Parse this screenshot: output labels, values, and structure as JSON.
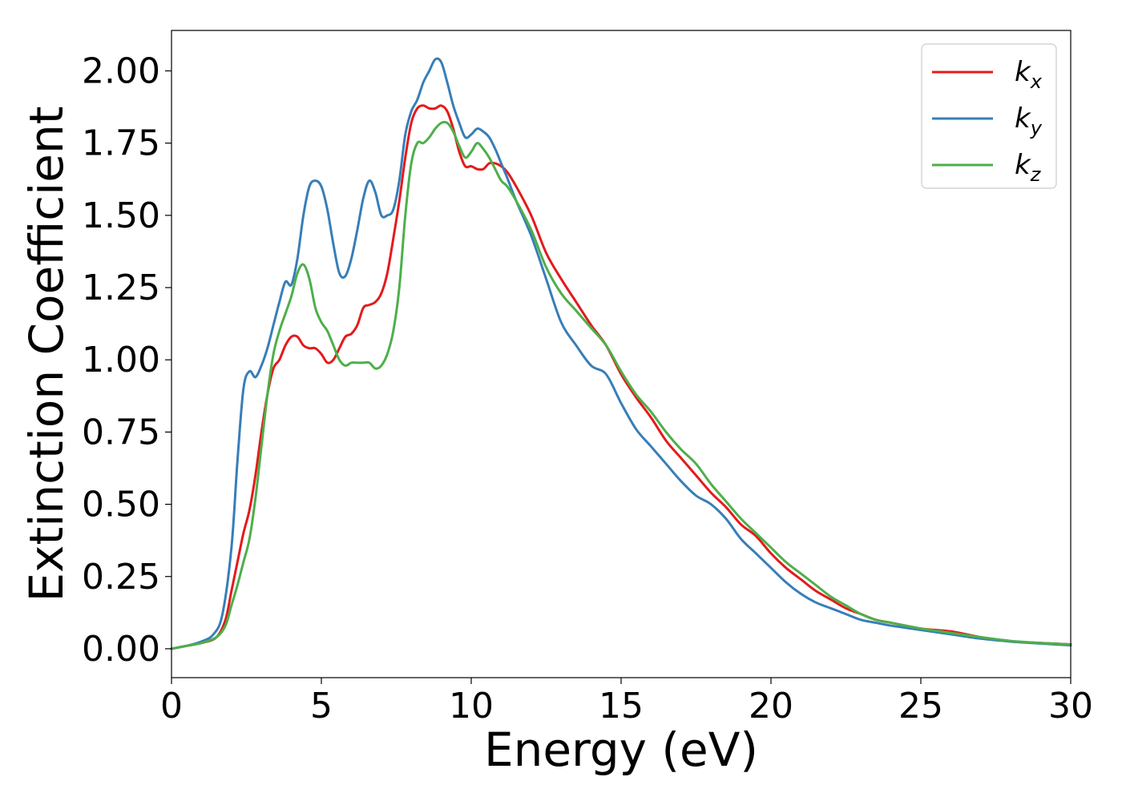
{
  "chart_data": {
    "type": "line",
    "xlabel": "Energy (eV)",
    "ylabel": "Extinction Coefficient",
    "xlim": [
      0,
      30
    ],
    "ylim": [
      -0.1,
      2.14
    ],
    "xticks": [
      0,
      5,
      10,
      15,
      20,
      25,
      30
    ],
    "xtick_labels": [
      "0",
      "5",
      "10",
      "15",
      "20",
      "25",
      "30"
    ],
    "yticks": [
      0.0,
      0.25,
      0.5,
      0.75,
      1.0,
      1.25,
      1.5,
      1.75,
      2.0
    ],
    "ytick_labels": [
      "0.00",
      "0.25",
      "0.50",
      "0.75",
      "1.00",
      "1.25",
      "1.50",
      "1.75",
      "2.00"
    ],
    "grid": false,
    "legend": "top-right",
    "series": [
      {
        "name": "k",
        "subscript": "x",
        "color": "#e41a1c",
        "x": [
          0,
          0.5,
          1.0,
          1.5,
          1.8,
          2.0,
          2.2,
          2.4,
          2.6,
          2.8,
          3.0,
          3.2,
          3.4,
          3.6,
          3.8,
          4.0,
          4.2,
          4.4,
          4.6,
          4.8,
          5.0,
          5.2,
          5.4,
          5.6,
          5.8,
          6.0,
          6.2,
          6.4,
          6.6,
          6.8,
          7.0,
          7.2,
          7.4,
          7.6,
          7.8,
          8.0,
          8.2,
          8.4,
          8.6,
          8.8,
          9.0,
          9.2,
          9.4,
          9.6,
          9.8,
          10.0,
          10.2,
          10.4,
          10.6,
          10.8,
          11.0,
          11.2,
          11.5,
          12.0,
          12.5,
          13.0,
          13.5,
          14.0,
          14.5,
          15.0,
          15.5,
          16.0,
          16.5,
          17.0,
          17.5,
          18.0,
          18.5,
          19.0,
          19.5,
          20.0,
          20.5,
          21.0,
          21.5,
          22.0,
          22.5,
          23.0,
          23.5,
          24.0,
          25.0,
          26.0,
          27.0,
          28.0,
          29.0,
          30.0
        ],
        "y": [
          0.0,
          0.01,
          0.02,
          0.04,
          0.1,
          0.2,
          0.3,
          0.4,
          0.48,
          0.6,
          0.75,
          0.88,
          0.97,
          1.0,
          1.05,
          1.08,
          1.08,
          1.05,
          1.04,
          1.04,
          1.02,
          0.99,
          1.0,
          1.04,
          1.08,
          1.09,
          1.12,
          1.18,
          1.19,
          1.2,
          1.23,
          1.3,
          1.42,
          1.55,
          1.7,
          1.82,
          1.87,
          1.88,
          1.87,
          1.87,
          1.88,
          1.86,
          1.8,
          1.72,
          1.67,
          1.67,
          1.66,
          1.66,
          1.68,
          1.68,
          1.67,
          1.65,
          1.6,
          1.5,
          1.37,
          1.28,
          1.2,
          1.12,
          1.05,
          0.95,
          0.87,
          0.8,
          0.72,
          0.66,
          0.6,
          0.54,
          0.49,
          0.43,
          0.39,
          0.33,
          0.28,
          0.24,
          0.2,
          0.17,
          0.14,
          0.12,
          0.1,
          0.09,
          0.07,
          0.06,
          0.04,
          0.025,
          0.02,
          0.015
        ]
      },
      {
        "name": "k",
        "subscript": "y",
        "color": "#377eb8",
        "x": [
          0,
          0.5,
          1.0,
          1.4,
          1.7,
          2.0,
          2.2,
          2.4,
          2.6,
          2.8,
          3.0,
          3.2,
          3.4,
          3.6,
          3.8,
          4.0,
          4.2,
          4.4,
          4.6,
          4.8,
          5.0,
          5.2,
          5.4,
          5.6,
          5.8,
          6.0,
          6.2,
          6.4,
          6.6,
          6.8,
          7.0,
          7.2,
          7.4,
          7.6,
          7.8,
          8.0,
          8.2,
          8.4,
          8.6,
          8.8,
          9.0,
          9.2,
          9.4,
          9.6,
          9.8,
          10.0,
          10.2,
          10.4,
          10.6,
          10.8,
          11.0,
          11.2,
          11.5,
          12.0,
          12.5,
          13.0,
          13.5,
          14.0,
          14.5,
          15.0,
          15.5,
          16.0,
          16.5,
          17.0,
          17.5,
          18.0,
          18.5,
          19.0,
          19.5,
          20.0,
          20.5,
          21.0,
          21.5,
          22.0,
          22.5,
          23.0,
          23.5,
          24.0,
          25.0,
          26.0,
          27.0,
          28.0,
          29.0,
          30.0
        ],
        "y": [
          0.0,
          0.01,
          0.025,
          0.05,
          0.12,
          0.35,
          0.65,
          0.9,
          0.96,
          0.94,
          0.98,
          1.04,
          1.12,
          1.2,
          1.27,
          1.26,
          1.35,
          1.5,
          1.6,
          1.62,
          1.6,
          1.52,
          1.4,
          1.3,
          1.29,
          1.35,
          1.45,
          1.56,
          1.62,
          1.58,
          1.5,
          1.5,
          1.52,
          1.62,
          1.78,
          1.86,
          1.9,
          1.96,
          2.0,
          2.04,
          2.03,
          1.96,
          1.88,
          1.82,
          1.77,
          1.78,
          1.8,
          1.79,
          1.77,
          1.73,
          1.68,
          1.63,
          1.55,
          1.43,
          1.28,
          1.13,
          1.05,
          0.98,
          0.95,
          0.85,
          0.76,
          0.7,
          0.64,
          0.58,
          0.53,
          0.5,
          0.45,
          0.38,
          0.33,
          0.28,
          0.23,
          0.19,
          0.16,
          0.14,
          0.12,
          0.1,
          0.09,
          0.08,
          0.065,
          0.05,
          0.035,
          0.025,
          0.018,
          0.012
        ]
      },
      {
        "name": "k",
        "subscript": "z",
        "color": "#4daf4a",
        "x": [
          0,
          0.5,
          1.0,
          1.5,
          1.8,
          2.0,
          2.2,
          2.4,
          2.6,
          2.8,
          3.0,
          3.2,
          3.4,
          3.6,
          3.8,
          4.0,
          4.2,
          4.4,
          4.6,
          4.8,
          5.0,
          5.2,
          5.4,
          5.6,
          5.8,
          6.0,
          6.2,
          6.4,
          6.6,
          6.8,
          7.0,
          7.2,
          7.4,
          7.6,
          7.8,
          8.0,
          8.2,
          8.4,
          8.6,
          8.8,
          9.0,
          9.2,
          9.4,
          9.6,
          9.8,
          10.0,
          10.2,
          10.4,
          10.6,
          10.8,
          11.0,
          11.2,
          11.5,
          12.0,
          12.5,
          13.0,
          13.5,
          14.0,
          14.5,
          15.0,
          15.5,
          16.0,
          16.5,
          17.0,
          17.5,
          18.0,
          18.5,
          19.0,
          19.5,
          20.0,
          20.5,
          21.0,
          21.5,
          22.0,
          22.5,
          23.0,
          23.5,
          24.0,
          25.0,
          26.0,
          27.0,
          28.0,
          29.0,
          30.0
        ],
        "y": [
          0.0,
          0.01,
          0.02,
          0.04,
          0.08,
          0.15,
          0.22,
          0.3,
          0.38,
          0.52,
          0.7,
          0.88,
          1.02,
          1.1,
          1.16,
          1.22,
          1.3,
          1.33,
          1.28,
          1.18,
          1.13,
          1.1,
          1.05,
          1.0,
          0.98,
          0.99,
          0.99,
          0.99,
          0.99,
          0.97,
          0.98,
          1.02,
          1.1,
          1.25,
          1.5,
          1.68,
          1.75,
          1.75,
          1.77,
          1.8,
          1.82,
          1.82,
          1.79,
          1.74,
          1.7,
          1.72,
          1.75,
          1.73,
          1.7,
          1.66,
          1.62,
          1.6,
          1.55,
          1.45,
          1.32,
          1.23,
          1.17,
          1.11,
          1.05,
          0.96,
          0.88,
          0.82,
          0.75,
          0.69,
          0.64,
          0.57,
          0.51,
          0.45,
          0.4,
          0.35,
          0.3,
          0.26,
          0.22,
          0.18,
          0.15,
          0.12,
          0.1,
          0.09,
          0.07,
          0.055,
          0.04,
          0.027,
          0.02,
          0.015
        ]
      }
    ]
  }
}
